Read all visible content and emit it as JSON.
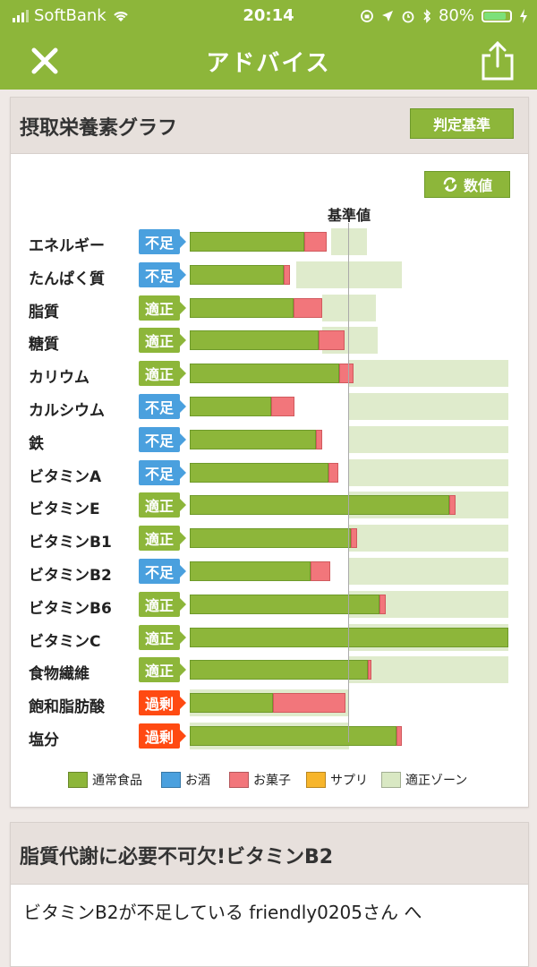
{
  "status": {
    "carrier": "SoftBank",
    "time": "20:14",
    "battery": "80%"
  },
  "nav": {
    "title": "アドバイス"
  },
  "chart_card": {
    "title": "摂取栄養素グラフ",
    "criteria_button": "判定基準",
    "numeric_button": "数値",
    "reference_label": "基準値"
  },
  "colors": {
    "green": "#8db63a",
    "blue": "#4aa0de",
    "red": "#f2767b",
    "orange": "#ff4a12",
    "zone": "#d9e8c3",
    "supplement": "#f7b52b"
  },
  "chart_data": {
    "type": "bar",
    "orientation": "horizontal",
    "stacked": true,
    "reference_line": "基準値",
    "status_key": {
      "不足": "blue",
      "適正": "green",
      "過剰": "orange"
    },
    "rows": [
      {
        "name": "エネルギー",
        "status": "不足",
        "food": 72,
        "sweets": 14,
        "zone": [
          89,
          111
        ]
      },
      {
        "name": "たんぱく質",
        "status": "不足",
        "food": 59,
        "sweets": 4,
        "zone": [
          67,
          133
        ]
      },
      {
        "name": "脂質",
        "status": "適正",
        "food": 65,
        "sweets": 18,
        "zone": [
          83,
          117
        ]
      },
      {
        "name": "糖質",
        "status": "適正",
        "food": 81,
        "sweets": 16,
        "zone": [
          83,
          118
        ]
      },
      {
        "name": "カリウム",
        "status": "適正",
        "food": 94,
        "sweets": 9,
        "zone": [
          100,
          200
        ]
      },
      {
        "name": "カルシウム",
        "status": "不足",
        "food": 51,
        "sweets": 15,
        "zone": [
          100,
          200
        ]
      },
      {
        "name": "鉄",
        "status": "不足",
        "food": 79,
        "sweets": 4,
        "zone": [
          100,
          200
        ]
      },
      {
        "name": "ビタミンA",
        "status": "不足",
        "food": 87,
        "sweets": 6,
        "zone": [
          100,
          200
        ]
      },
      {
        "name": "ビタミンE",
        "status": "適正",
        "food": 163,
        "sweets": 4,
        "zone": [
          100,
          200
        ]
      },
      {
        "name": "ビタミンB1",
        "status": "適正",
        "food": 101,
        "sweets": 4,
        "zone": [
          100,
          200
        ]
      },
      {
        "name": "ビタミンB2",
        "status": "不足",
        "food": 76,
        "sweets": 12,
        "zone": [
          100,
          200
        ]
      },
      {
        "name": "ビタミンB6",
        "status": "適正",
        "food": 119,
        "sweets": 4,
        "zone": [
          100,
          200
        ]
      },
      {
        "name": "ビタミンC",
        "status": "適正",
        "food": 200,
        "sweets": 0,
        "zone": [
          100,
          200
        ]
      },
      {
        "name": "食物繊維",
        "status": "適正",
        "food": 112,
        "sweets": 2,
        "zone": [
          100,
          200
        ]
      },
      {
        "name": "飽和脂肪酸",
        "status": "過剰",
        "food": 52,
        "sweets": 46,
        "zone": [
          0,
          100
        ]
      },
      {
        "name": "塩分",
        "status": "過剰",
        "food": 130,
        "sweets": 3,
        "zone": [
          0,
          100
        ]
      }
    ],
    "legend": [
      {
        "label": "通常食品",
        "color": "#8db63a"
      },
      {
        "label": "お酒",
        "color": "#4aa0de"
      },
      {
        "label": "お菓子",
        "color": "#f2767b"
      },
      {
        "label": "サプリ",
        "color": "#f7b52b"
      },
      {
        "label": "適正ゾーン",
        "color": "#d9e8c3"
      }
    ]
  },
  "advice_card": {
    "title": "脂質代謝に必要不可欠!ビタミンB2",
    "body": "ビタミンB2が不足している friendly0205さん へ"
  }
}
